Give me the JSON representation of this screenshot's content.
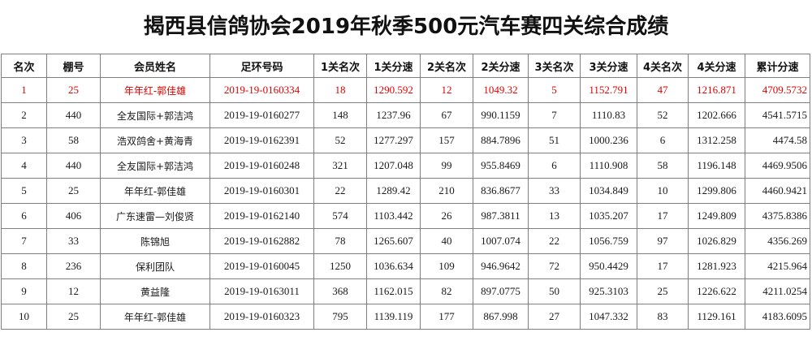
{
  "title": "揭西县信鸽协会2019年秋季500元汽车赛四关综合成绩",
  "headers": [
    "名次",
    "棚号",
    "会员姓名",
    "足环号码",
    "1关名次",
    "1关分速",
    "2关名次",
    "2关分速",
    "3关名次",
    "3关分速",
    "4关名次",
    "4关分速",
    "累计分速"
  ],
  "colors": {
    "highlight_row": "#e00000",
    "border": "#7f7f7f"
  },
  "rows": [
    [
      "1",
      "25",
      "年年红-郭佳雄",
      "2019-19-0160334",
      "18",
      "1290.592",
      "12",
      "1049.32",
      "5",
      "1152.791",
      "47",
      "1216.871",
      "4709.5732"
    ],
    [
      "2",
      "440",
      "全友国际+郭洁鸿",
      "2019-19-0160277",
      "148",
      "1237.96",
      "67",
      "990.1159",
      "7",
      "1110.83",
      "52",
      "1202.666",
      "4541.5715"
    ],
    [
      "3",
      "58",
      "浩双鸽舍+黄海青",
      "2019-19-0162391",
      "52",
      "1277.297",
      "157",
      "884.7896",
      "51",
      "1000.236",
      "6",
      "1312.258",
      "4474.58"
    ],
    [
      "4",
      "440",
      "全友国际+郭洁鸿",
      "2019-19-0160248",
      "321",
      "1207.048",
      "99",
      "955.8469",
      "6",
      "1110.908",
      "58",
      "1196.148",
      "4469.9506"
    ],
    [
      "5",
      "25",
      "年年红-郭佳雄",
      "2019-19-0160301",
      "22",
      "1289.42",
      "210",
      "836.8677",
      "33",
      "1034.849",
      "10",
      "1299.806",
      "4460.9421"
    ],
    [
      "6",
      "406",
      "广东速雷—刘俊贤",
      "2019-19-0162140",
      "574",
      "1103.442",
      "26",
      "987.3811",
      "13",
      "1035.207",
      "17",
      "1249.809",
      "4375.8386"
    ],
    [
      "7",
      "33",
      "陈锦旭",
      "2019-19-0162882",
      "78",
      "1265.607",
      "40",
      "1007.074",
      "22",
      "1056.759",
      "97",
      "1026.829",
      "4356.269"
    ],
    [
      "8",
      "236",
      "保利团队",
      "2019-19-0160045",
      "1250",
      "1036.634",
      "109",
      "946.9642",
      "72",
      "950.4429",
      "17",
      "1281.923",
      "4215.964"
    ],
    [
      "9",
      "12",
      "黄益隆",
      "2019-19-0163011",
      "368",
      "1162.015",
      "82",
      "897.0775",
      "50",
      "925.3103",
      "25",
      "1226.622",
      "4211.0254"
    ],
    [
      "10",
      "25",
      "年年红-郭佳雄",
      "2019-19-0160323",
      "795",
      "1139.119",
      "177",
      "867.998",
      "27",
      "1047.332",
      "83",
      "1129.161",
      "4183.6095"
    ]
  ]
}
